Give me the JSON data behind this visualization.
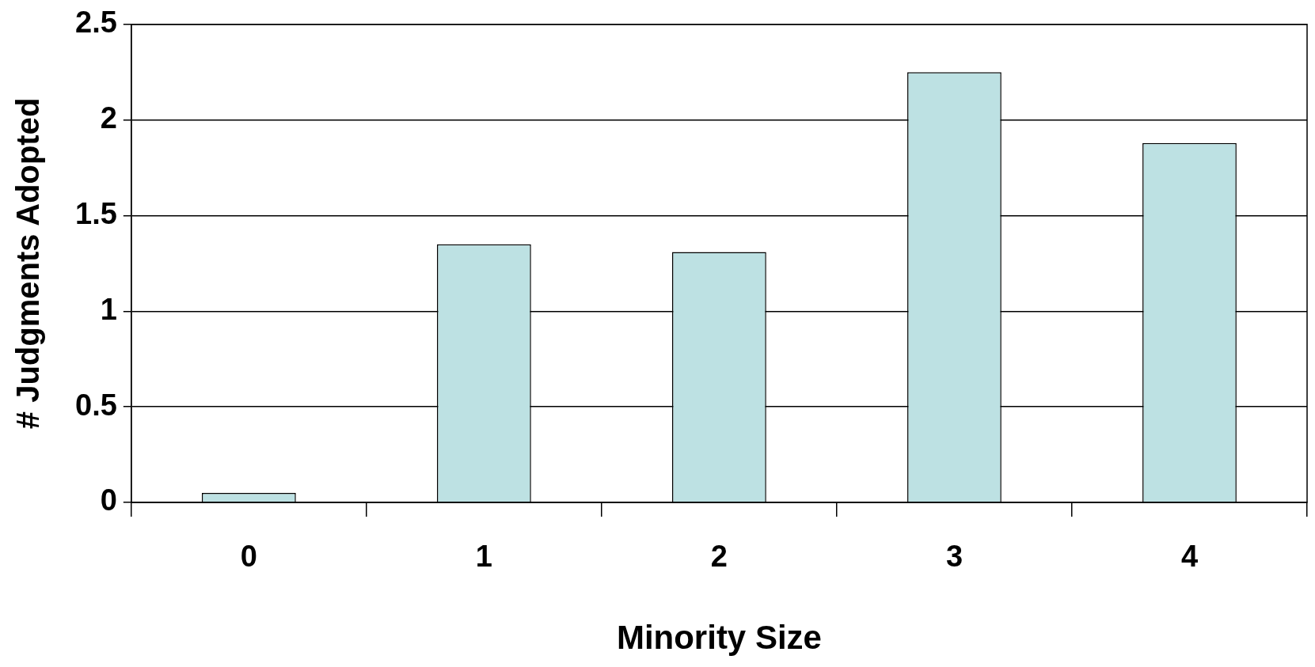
{
  "chart_data": {
    "type": "bar",
    "xlabel": "Minority Size",
    "ylabel": "# Judgments Adopted",
    "categories": [
      "0",
      "1",
      "2",
      "3",
      "4"
    ],
    "values": [
      0.05,
      1.35,
      1.31,
      2.25,
      1.88
    ],
    "color": "#bde1e3",
    "ylim": [
      0,
      2.5
    ],
    "yticks": [
      0,
      0.5,
      1,
      1.5,
      2,
      2.5
    ],
    "grid": "y",
    "legend": false
  }
}
